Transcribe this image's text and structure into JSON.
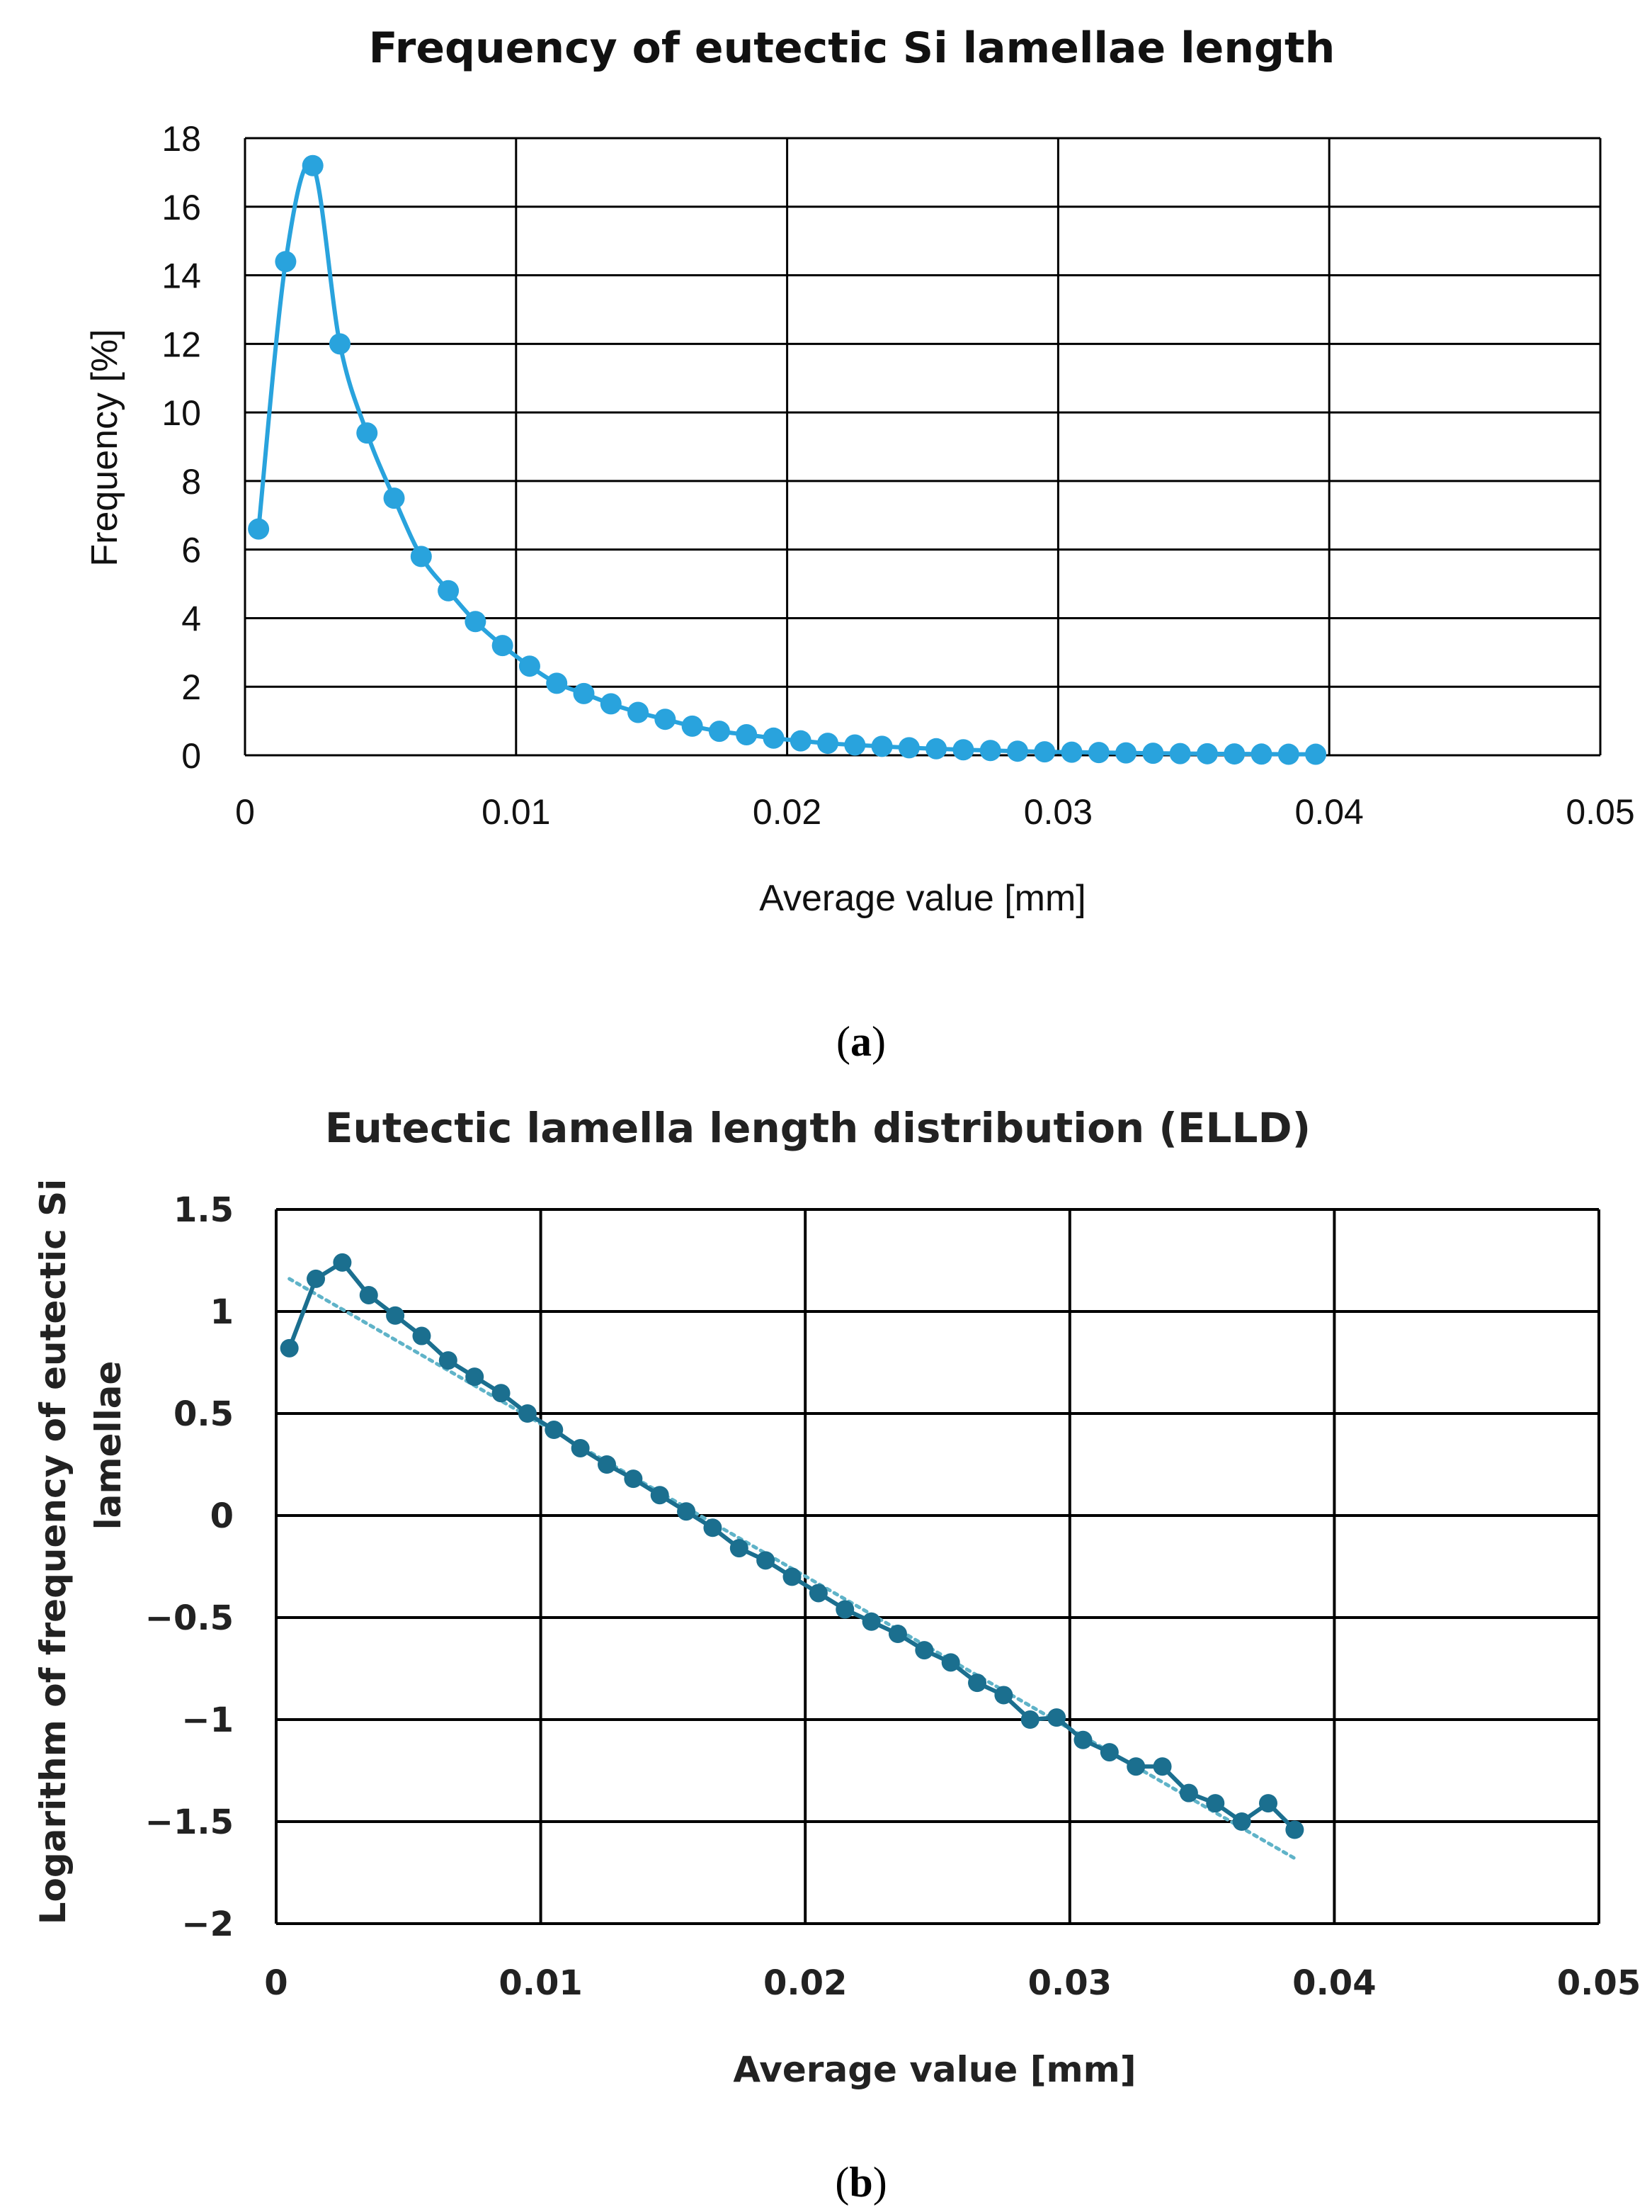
{
  "chart_data": [
    {
      "type": "line",
      "title": "Frequency of eutectic Si lamellae length",
      "xlabel": "Average value [mm]",
      "ylabel": "Frequency [%]",
      "xlim": [
        0,
        0.05
      ],
      "ylim": [
        0,
        18
      ],
      "xticks": [
        "0",
        "0.01",
        "0.02",
        "0.03",
        "0.04",
        "0.05"
      ],
      "yticks": [
        "0",
        "2",
        "4",
        "6",
        "8",
        "10",
        "12",
        "14",
        "16",
        "18"
      ],
      "grid": true,
      "color": "#29a3dd",
      "caption_label": "a",
      "series": [
        {
          "name": "Frequency",
          "x": [
            0.0005,
            0.0015,
            0.0025,
            0.0035,
            0.0045,
            0.0055,
            0.0065,
            0.0075,
            0.0085,
            0.0095,
            0.0105,
            0.0115,
            0.0125,
            0.0135,
            0.0145,
            0.0155,
            0.0165,
            0.0175,
            0.0185,
            0.0195,
            0.0205,
            0.0215,
            0.0225,
            0.0235,
            0.0245,
            0.0255,
            0.0265,
            0.0275,
            0.0285,
            0.0295,
            0.0305,
            0.0315,
            0.0325,
            0.0335,
            0.0345,
            0.0355,
            0.0365,
            0.0375,
            0.0385,
            0.0395
          ],
          "y": [
            6.6,
            14.4,
            17.2,
            12.0,
            9.4,
            7.5,
            5.8,
            4.8,
            3.9,
            3.2,
            2.6,
            2.1,
            1.8,
            1.5,
            1.25,
            1.05,
            0.85,
            0.7,
            0.6,
            0.5,
            0.42,
            0.35,
            0.3,
            0.26,
            0.22,
            0.19,
            0.16,
            0.14,
            0.12,
            0.1,
            0.09,
            0.08,
            0.07,
            0.06,
            0.05,
            0.045,
            0.04,
            0.035,
            0.03,
            0.03
          ]
        }
      ]
    },
    {
      "type": "line",
      "title": "Eutectic lamella length distribution (ELLD)",
      "xlabel": "Average value [mm]",
      "ylabel_lines": [
        "Logarithm of frequency of eutectic Si",
        "lamellae"
      ],
      "xlim": [
        0,
        0.05
      ],
      "ylim": [
        -2,
        1.5
      ],
      "xticks": [
        "0",
        "0.01",
        "0.02",
        "0.03",
        "0.04",
        "0.05"
      ],
      "yticks": [
        "−2",
        "−1.5",
        "−1",
        "−0.5",
        "0",
        "0.5",
        "1",
        "1.5"
      ],
      "grid": true,
      "color": "#1b6f8f",
      "trend_color": "#5fb3c8",
      "caption_label": "b",
      "series": [
        {
          "name": "log frequency",
          "x": [
            0.0005,
            0.0015,
            0.0025,
            0.0035,
            0.0045,
            0.0055,
            0.0065,
            0.0075,
            0.0085,
            0.0095,
            0.0105,
            0.0115,
            0.0125,
            0.0135,
            0.0145,
            0.0155,
            0.0165,
            0.0175,
            0.0185,
            0.0195,
            0.0205,
            0.0215,
            0.0225,
            0.0235,
            0.0245,
            0.0255,
            0.0265,
            0.0275,
            0.0285,
            0.0295,
            0.0305,
            0.0315,
            0.0325,
            0.0335,
            0.0345,
            0.0355,
            0.0365,
            0.0375,
            0.0385
          ],
          "y": [
            0.82,
            1.16,
            1.24,
            1.08,
            0.98,
            0.88,
            0.76,
            0.68,
            0.6,
            0.5,
            0.42,
            0.33,
            0.25,
            0.18,
            0.1,
            0.02,
            -0.06,
            -0.16,
            -0.22,
            -0.3,
            -0.38,
            -0.46,
            -0.52,
            -0.58,
            -0.66,
            -0.72,
            -0.82,
            -0.88,
            -1.0,
            -0.99,
            -1.1,
            -1.16,
            -1.23,
            -1.23,
            -1.36,
            -1.41,
            -1.5,
            -1.41,
            -1.54
          ]
        }
      ],
      "trendline": {
        "x": [
          0.0005,
          0.0385
        ],
        "y": [
          1.16,
          -1.68
        ]
      }
    }
  ]
}
